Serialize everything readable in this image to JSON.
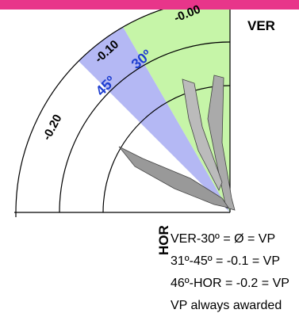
{
  "diagram": {
    "axis_labels": {
      "vertical": "VER",
      "horizontal": "HOR"
    },
    "zone_labels": [
      "-0.00",
      "-0.10",
      "-0.20"
    ],
    "angle_labels": [
      "30º",
      "45º"
    ],
    "legend": [
      "VER-30º = Ø = VP",
      "31º-45º = -0.1 = VP",
      "46º-HOR = -0.2 = VP",
      "VP always awarded"
    ]
  }
}
